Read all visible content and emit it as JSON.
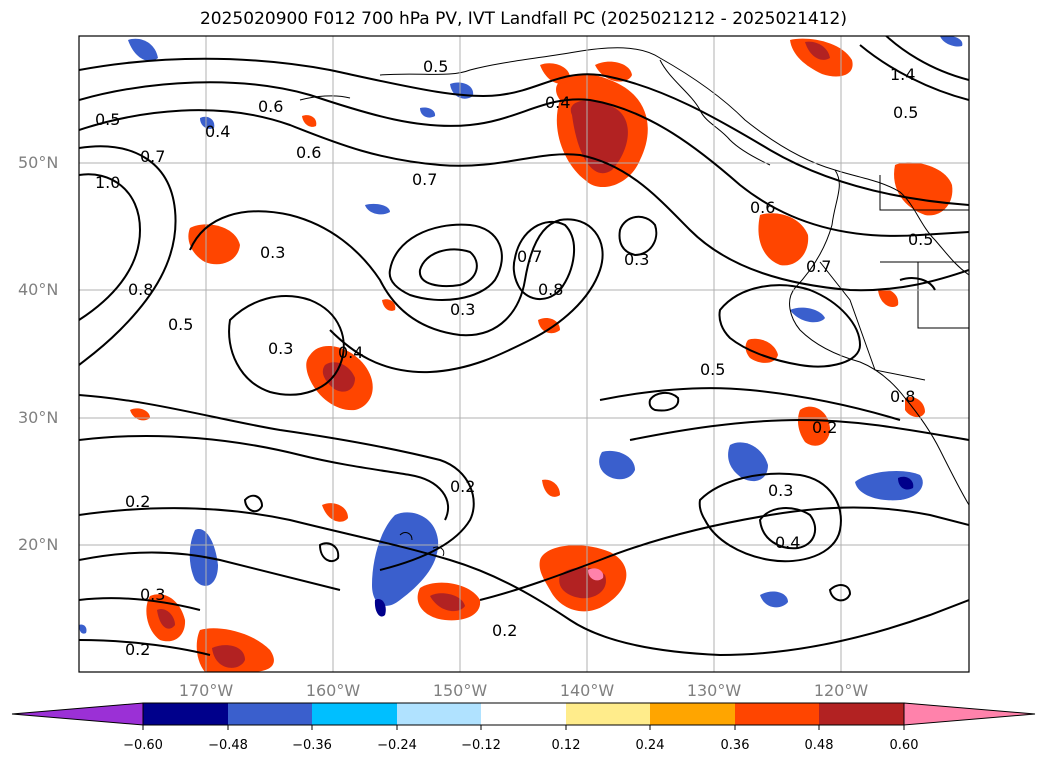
{
  "title": "2025020900 F012 700 hPa PV, IVT Landfall PC (2025021212 - 2025021412)",
  "map": {
    "projection": "plate-carree",
    "lon_range": [
      -180,
      -110
    ],
    "lat_range": [
      10,
      60
    ],
    "grid": true,
    "lat_ticks": [
      "50°N",
      "40°N",
      "30°N",
      "20°N"
    ],
    "lon_ticks": [
      "170°W",
      "160°W",
      "150°W",
      "140°W",
      "130°W",
      "120°W"
    ],
    "contour_labels": [
      "0.5",
      "0.4",
      "0.7",
      "1.0",
      "0.8",
      "0.6",
      "0.5",
      "0.3",
      "0.7",
      "0.3",
      "0.4",
      "0.5",
      "0.7",
      "0.8",
      "0.3",
      "0.4",
      "0.2",
      "0.2",
      "0.2",
      "0.3",
      "0.4",
      "0.6",
      "0.7",
      "0.2",
      "0.3",
      "1.4",
      "0.5",
      "0.6",
      "0.5",
      "0.8",
      "0.3",
      "0.2",
      "0.5"
    ]
  },
  "colorbar": {
    "ticks": [
      "−0.60",
      "−0.48",
      "−0.36",
      "−0.24",
      "−0.12",
      "0.12",
      "0.24",
      "0.36",
      "0.48",
      "0.60"
    ],
    "colors": [
      "#9b30d6",
      "#00008b",
      "#3a5fcd",
      "#00bfff",
      "#b0e2ff",
      "#ffffff",
      "#ffec8b",
      "#ffa500",
      "#ff4500",
      "#b22222",
      "#ff82ab"
    ],
    "extend": "both"
  }
}
